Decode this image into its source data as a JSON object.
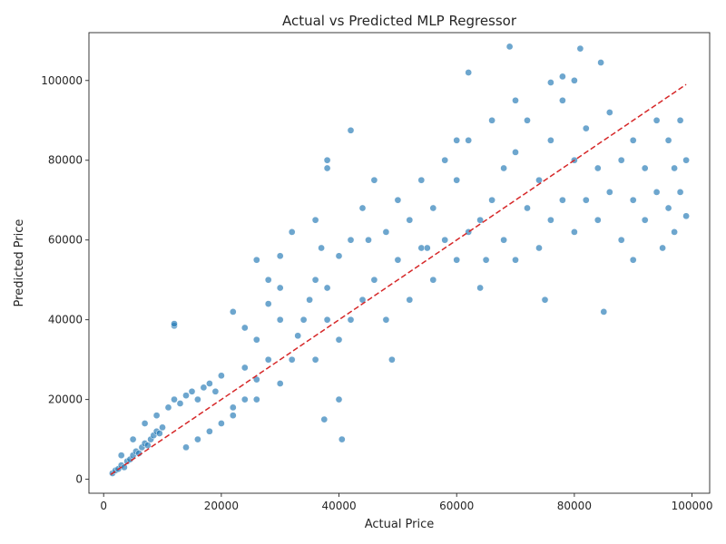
{
  "chart_data": {
    "type": "scatter",
    "title": "Actual vs Predicted MLP Regressor",
    "xlabel": "Actual Price",
    "ylabel": "Predicted Price",
    "xlim": [
      -2500,
      103000
    ],
    "ylim": [
      -3500,
      112000
    ],
    "xticks": [
      0,
      20000,
      40000,
      60000,
      80000,
      100000
    ],
    "yticks": [
      0,
      20000,
      40000,
      60000,
      80000,
      100000
    ],
    "xtick_labels": [
      "0",
      "20000",
      "40000",
      "60000",
      "80000",
      "100000"
    ],
    "ytick_labels": [
      "0",
      "20000",
      "40000",
      "60000",
      "80000",
      "100000"
    ],
    "grid": false,
    "legend": "none",
    "point_color": "#1f77b4",
    "point_opacity": 0.65,
    "series": [
      {
        "kind": "scatter",
        "x": [
          1500,
          2000,
          2500,
          3000,
          3500,
          4000,
          4500,
          5000,
          5500,
          6000,
          6500,
          7000,
          7500,
          8000,
          8500,
          9000,
          9500,
          10000,
          3000,
          5000,
          7000,
          9000,
          11000,
          12000,
          13000,
          14000,
          15000,
          16000,
          17000,
          18000,
          19000,
          20000,
          12000,
          12000,
          14000,
          16000,
          18000,
          20000,
          22000,
          24000,
          26000,
          26000,
          26000,
          28000,
          28000,
          30000,
          30000,
          30000,
          22000,
          22000,
          24000,
          24000,
          26000,
          28000,
          30000,
          32000,
          32000,
          33000,
          34000,
          35000,
          36000,
          37000,
          38000,
          36000,
          36000,
          38000,
          38000,
          40000,
          40000,
          40000,
          42000,
          42000,
          44000,
          44000,
          46000,
          46000,
          48000,
          48000,
          50000,
          50000,
          52000,
          52000,
          54000,
          54000,
          56000,
          56000,
          58000,
          58000,
          60000,
          60000,
          62000,
          62000,
          64000,
          64000,
          66000,
          66000,
          68000,
          68000,
          70000,
          70000,
          72000,
          72000,
          74000,
          74000,
          76000,
          76000,
          78000,
          78000,
          80000,
          80000,
          82000,
          82000,
          84000,
          84000,
          86000,
          86000,
          88000,
          88000,
          90000,
          90000,
          92000,
          92000,
          94000,
          94000,
          96000,
          96000,
          97000,
          97000,
          98000,
          98000,
          99000,
          99000,
          62000,
          69000,
          81000,
          84500,
          78000,
          76000,
          42000,
          40500,
          38000,
          49000,
          37500,
          45000,
          55000,
          65000,
          75000,
          85000,
          95000,
          60000,
          70000,
          80000,
          90000
        ],
        "y": [
          1500,
          2200,
          2600,
          3500,
          3000,
          4500,
          5000,
          6000,
          7000,
          6500,
          8000,
          9000,
          8500,
          10000,
          11000,
          12000,
          11500,
          13000,
          6000,
          10000,
          14000,
          16000,
          18000,
          20000,
          19000,
          21000,
          22000,
          20000,
          23000,
          24000,
          22000,
          26000,
          38500,
          39000,
          8000,
          10000,
          12000,
          14000,
          18000,
          20000,
          25000,
          35000,
          55000,
          30000,
          50000,
          24000,
          40000,
          56000,
          42000,
          16000,
          28000,
          38000,
          20000,
          44000,
          48000,
          62000,
          30000,
          36000,
          40000,
          45000,
          50000,
          58000,
          40000,
          30000,
          65000,
          48000,
          78000,
          56000,
          35000,
          20000,
          40000,
          60000,
          45000,
          68000,
          50000,
          75000,
          40000,
          62000,
          55000,
          70000,
          45000,
          65000,
          58000,
          75000,
          50000,
          68000,
          60000,
          80000,
          55000,
          75000,
          62000,
          85000,
          65000,
          48000,
          70000,
          90000,
          60000,
          78000,
          55000,
          82000,
          68000,
          90000,
          58000,
          75000,
          65000,
          85000,
          70000,
          95000,
          62000,
          80000,
          70000,
          88000,
          65000,
          78000,
          72000,
          92000,
          60000,
          80000,
          70000,
          85000,
          65000,
          78000,
          72000,
          90000,
          68000,
          85000,
          62000,
          78000,
          72000,
          90000,
          66000,
          80000,
          102000,
          108500,
          108000,
          104500,
          101000,
          99500,
          87500,
          10000,
          80000,
          30000,
          15000,
          60000,
          58000,
          55000,
          45000,
          42000,
          58000,
          85000,
          95000,
          100000,
          55000
        ]
      },
      {
        "kind": "line",
        "name": "",
        "color": "#d62728",
        "dash": "dashed",
        "x": [
          1200,
          99000
        ],
        "y": [
          1200,
          99000
        ]
      }
    ]
  }
}
